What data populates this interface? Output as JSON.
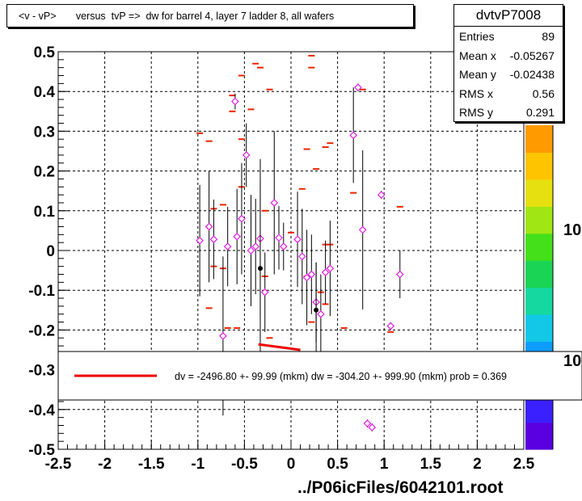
{
  "title": "<v - vP>       versus  tvP =>  dw for barrel 4, layer 7 ladder 8, all wafers",
  "stats": {
    "name": "dvtvP7008",
    "rows": [
      {
        "label": "Entries",
        "value": "89"
      },
      {
        "label": "Mean x",
        "value": "-0.05267"
      },
      {
        "label": "Mean y",
        "value": "-0.02438"
      },
      {
        "label": "RMS x",
        "value": "0.56"
      },
      {
        "label": "RMS y",
        "value": "0.291"
      }
    ]
  },
  "legend": {
    "text": "dv = -2496.80 +- 99.99 (mkm) dw = -304.20 +- 999.90 (mkm) prob = 0.369",
    "line_color": "#ee0000"
  },
  "footer": "../P06icFiles/6042101.root",
  "colorbar_labels": [
    "10",
    "10"
  ],
  "chart_data": {
    "type": "scatter",
    "xlim": [
      -2.5,
      2.5
    ],
    "ylim": [
      -0.5,
      0.5
    ],
    "x_ticks": [
      "-2.5",
      "-2",
      "-1.5",
      "-1",
      "-0.5",
      "0",
      "0.5",
      "1",
      "1.5",
      "2",
      "2.5"
    ],
    "y_ticks": [
      "-0.5",
      "-0.4",
      "-0.3",
      "-0.2",
      "-0.1",
      "0",
      "0.1",
      "0.2",
      "0.3",
      "0.4",
      "0.5"
    ],
    "grid": true,
    "profile_points": [
      {
        "x": -0.98,
        "y": 0.025,
        "err": 0.14
      },
      {
        "x": -0.88,
        "y": 0.06,
        "err": 0.14
      },
      {
        "x": -0.83,
        "y": 0.028,
        "err": 0.1
      },
      {
        "x": -0.73,
        "y": -0.215,
        "err": 0.2
      },
      {
        "x": -0.68,
        "y": 0.01,
        "err": 0.1
      },
      {
        "x": -0.6,
        "y": 0.375,
        "err": 0.02
      },
      {
        "x": -0.58,
        "y": 0.035,
        "err": 0.12
      },
      {
        "x": -0.53,
        "y": 0.08,
        "err": 0.14
      },
      {
        "x": -0.48,
        "y": 0.24,
        "err": 0.08
      },
      {
        "x": -0.43,
        "y": 0.0,
        "err": 0.14
      },
      {
        "x": -0.38,
        "y": 0.01,
        "err": 0.12
      },
      {
        "x": -0.33,
        "y": 0.03,
        "err": 0.2
      },
      {
        "x": -0.28,
        "y": -0.105,
        "err": 0.1
      },
      {
        "x": -0.18,
        "y": 0.12,
        "err": 0.18
      },
      {
        "x": -0.13,
        "y": 0.032,
        "err": 0.08
      },
      {
        "x": -0.08,
        "y": 0.01,
        "err": 0.06
      },
      {
        "x": 0.07,
        "y": 0.028,
        "err": 0.12
      },
      {
        "x": 0.12,
        "y": -0.015,
        "err": 0.12
      },
      {
        "x": 0.17,
        "y": -0.068,
        "err": 0.12
      },
      {
        "x": 0.22,
        "y": -0.06,
        "err": 0.1
      },
      {
        "x": 0.27,
        "y": -0.13,
        "err": 0.1
      },
      {
        "x": 0.32,
        "y": -0.16,
        "err": 0.1
      },
      {
        "x": 0.37,
        "y": -0.055,
        "err": 0.08
      },
      {
        "x": 0.42,
        "y": -0.045,
        "err": 0.12
      },
      {
        "x": 0.67,
        "y": 0.29,
        "err": 0.12
      },
      {
        "x": 0.72,
        "y": 0.41,
        "err": 0.01
      },
      {
        "x": 0.77,
        "y": 0.052,
        "err": 0.2
      },
      {
        "x": 0.97,
        "y": 0.14,
        "err": 0.01
      },
      {
        "x": 1.07,
        "y": -0.19,
        "err": 0.01
      },
      {
        "x": 1.17,
        "y": -0.06,
        "err": 0.06
      },
      {
        "x": 0.82,
        "y": -0.435,
        "err": 0.01
      },
      {
        "x": 0.87,
        "y": -0.445,
        "err": 0.01
      }
    ],
    "dark_points": [
      {
        "x": -0.33,
        "y": -0.045,
        "err": 0.22
      },
      {
        "x": 0.27,
        "y": -0.15,
        "err": 0.12
      }
    ],
    "red_markers": [
      {
        "x": -0.98,
        "y": 0.295
      },
      {
        "x": -0.88,
        "y": 0.275
      },
      {
        "x": -0.83,
        "y": 0.105
      },
      {
        "x": -0.88,
        "y": -0.145
      },
      {
        "x": -0.83,
        "y": -0.04
      },
      {
        "x": -0.68,
        "y": -0.195
      },
      {
        "x": -0.63,
        "y": 0.39
      },
      {
        "x": -0.63,
        "y": 0.35
      },
      {
        "x": -0.58,
        "y": -0.195
      },
      {
        "x": -0.53,
        "y": 0.44
      },
      {
        "x": -0.53,
        "y": 0.28
      },
      {
        "x": -0.53,
        "y": 0.16
      },
      {
        "x": -0.43,
        "y": 0.355
      },
      {
        "x": -0.38,
        "y": 0.47
      },
      {
        "x": -0.33,
        "y": 0.46
      },
      {
        "x": -0.28,
        "y": 0.1
      },
      {
        "x": -0.23,
        "y": 0.405
      },
      {
        "x": -0.23,
        "y": -0.22
      },
      {
        "x": -0.28,
        "y": -0.065
      },
      {
        "x": 0.0,
        "y": 0.045
      },
      {
        "x": 0.12,
        "y": 0.155
      },
      {
        "x": 0.17,
        "y": 0.255
      },
      {
        "x": 0.17,
        "y": -0.065
      },
      {
        "x": 0.22,
        "y": 0.49
      },
      {
        "x": 0.22,
        "y": 0.46
      },
      {
        "x": 0.22,
        "y": -0.18
      },
      {
        "x": 0.27,
        "y": 0.205
      },
      {
        "x": 0.32,
        "y": -0.105
      },
      {
        "x": 0.37,
        "y": 0.26
      },
      {
        "x": 0.37,
        "y": 0.015
      },
      {
        "x": 0.37,
        "y": -0.135
      },
      {
        "x": 0.42,
        "y": 0.015
      },
      {
        "x": 0.42,
        "y": 0.27
      },
      {
        "x": 0.57,
        "y": -0.195
      },
      {
        "x": 0.67,
        "y": 0.145
      },
      {
        "x": 0.77,
        "y": 0.405
      },
      {
        "x": 1.07,
        "y": -0.205
      },
      {
        "x": 1.17,
        "y": 0.11
      },
      {
        "x": -0.73,
        "y": 0.115
      },
      {
        "x": -0.73,
        "y": -0.045
      }
    ],
    "fit_line": {
      "x0": -0.35,
      "y0": -0.236,
      "x1": 0.1,
      "y1": -0.25
    }
  }
}
